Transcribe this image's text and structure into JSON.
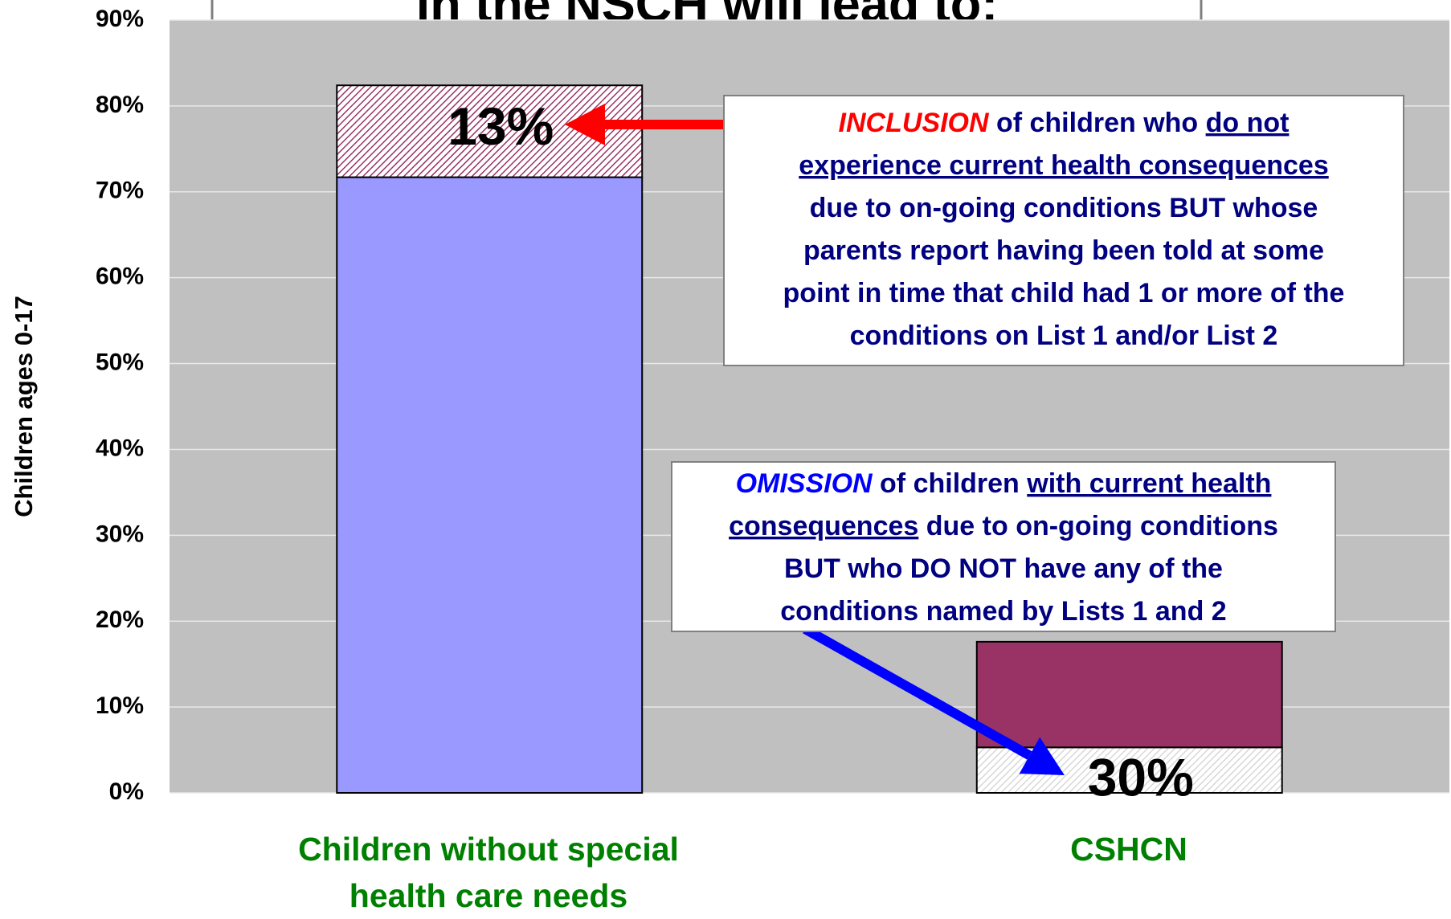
{
  "chart_data": {
    "type": "stacked_bar",
    "title": "in the NSCH will lead to:",
    "y_axis_label": "Children ages 0-17",
    "categories": [
      "Children without special health care needs",
      "CSHCN"
    ],
    "series": [
      {
        "colors": [
          "#9999ff",
          "#d8d8d8"
        ],
        "hatched": [
          false,
          true
        ],
        "values": [
          71.7,
          5.3
        ]
      },
      {
        "colors": [
          "#993366",
          "#993366"
        ],
        "hatched": [
          true,
          false
        ],
        "values": [
          10.7,
          12.3
        ]
      }
    ],
    "ylim": [
      0,
      90
    ],
    "yticks": [
      {
        "value": 0,
        "label": "0%"
      },
      {
        "value": 10,
        "label": "10%"
      },
      {
        "value": 20,
        "label": "20%"
      },
      {
        "value": 30,
        "label": "30%"
      },
      {
        "value": 40,
        "label": "40%"
      },
      {
        "value": 50,
        "label": "50%"
      },
      {
        "value": 60,
        "label": "60%"
      },
      {
        "value": 70,
        "label": "70%"
      },
      {
        "value": 80,
        "label": "80%"
      },
      {
        "value": 90,
        "label": "90%"
      }
    ],
    "grid": true,
    "plot_background": "#c0c0c0",
    "annotations": [
      {
        "text": "13%",
        "category": 0,
        "series": 1
      },
      {
        "text": "30%",
        "category": 1,
        "series": 0
      }
    ],
    "callouts": [
      {
        "emphasis_color": "#ff0000",
        "arrow_color": "#ff0000",
        "lines": [
          [
            {
              "text": "INCLUSION",
              "style": "em"
            },
            {
              "text": "  of children who "
            },
            {
              "text": "do not ",
              "style": "u"
            }
          ],
          [
            {
              "text": "experience current health consequences ",
              "style": "u"
            }
          ],
          [
            {
              "text": "due to on-going conditions BUT whose"
            }
          ],
          [
            {
              "text": "parents report having been told at some"
            }
          ],
          [
            {
              "text": "point in time that child had 1 or more of the"
            }
          ],
          [
            {
              "text": "conditions on List 1 and/or List 2"
            }
          ]
        ]
      },
      {
        "emphasis_color": "#0000ff",
        "arrow_color": "#0000ff",
        "lines": [
          [
            {
              "text": "OMISSION",
              "style": "em"
            },
            {
              "text": "  of children "
            },
            {
              "text": "with current health ",
              "style": "u"
            }
          ],
          [
            {
              "text": "consequences",
              "style": "u"
            },
            {
              "text": " due to on-going conditions"
            }
          ],
          [
            {
              "text": "BUT who DO NOT have any of the"
            }
          ],
          [
            {
              "text": "conditions named by Lists 1 and 2"
            }
          ]
        ]
      }
    ]
  }
}
